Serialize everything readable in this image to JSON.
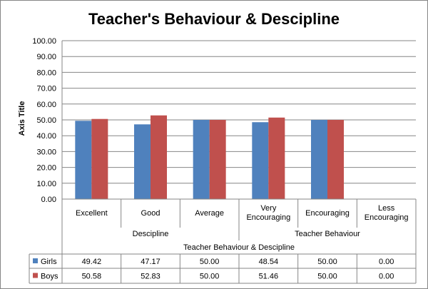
{
  "chart_data": {
    "type": "bar",
    "title": "Teacher's  Behaviour & Descipline",
    "ylabel": "Axis Title",
    "ylim": [
      0,
      100
    ],
    "y_ticks": [
      "0.00",
      "10.00",
      "20.00",
      "30.00",
      "40.00",
      "50.00",
      "60.00",
      "70.00",
      "80.00",
      "90.00",
      "100.00"
    ],
    "grid": true,
    "legend": "data-table",
    "categories": [
      {
        "label": [
          "Excellent"
        ],
        "group": 0
      },
      {
        "label": [
          "Good"
        ],
        "group": 0
      },
      {
        "label": [
          "Average"
        ],
        "group": 0
      },
      {
        "label": [
          "Very",
          "Encouraging"
        ],
        "group": 1
      },
      {
        "label": [
          "Encouraging"
        ],
        "group": 1
      },
      {
        "label": [
          "Less",
          "Encouraging"
        ],
        "group": 1
      }
    ],
    "groups": [
      "Descipline",
      "Teacher Behaviour"
    ],
    "super_group": "Teacher Behaviour & Descipline",
    "series": [
      {
        "name": "Girls",
        "color": "#4F81BD",
        "values": [
          49.42,
          47.17,
          50.0,
          48.54,
          50.0,
          0.0
        ],
        "labels": [
          "49.42",
          "47.17",
          "50.00",
          "48.54",
          "50.00",
          "0.00"
        ]
      },
      {
        "name": "Boys",
        "color": "#C0504D",
        "values": [
          50.58,
          52.83,
          50.0,
          51.46,
          50.0,
          0.0
        ],
        "labels": [
          "50.58",
          "52.83",
          "50.00",
          "51.46",
          "50.00",
          "0.00"
        ]
      }
    ]
  }
}
